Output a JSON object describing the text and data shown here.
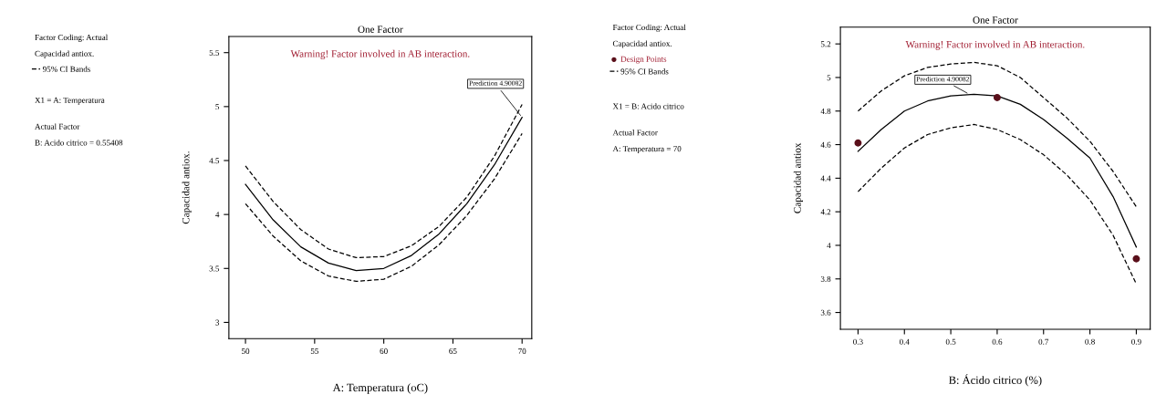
{
  "chart_data": [
    {
      "type": "line",
      "title": "One Factor",
      "subtitle": "Warning! Factor involved in AB interaction.",
      "xlabel": "A: Temperatura (oC)",
      "ylabel": "Capacidad antiox.",
      "x": [
        50,
        52,
        54,
        56,
        58,
        60,
        62,
        64,
        66,
        68,
        70
      ],
      "series": [
        {
          "color": "#000000",
          "line_style": "solid",
          "values": [
            4.28,
            3.95,
            3.7,
            3.55,
            3.48,
            3.5,
            3.62,
            3.82,
            4.1,
            4.46,
            4.9
          ]
        },
        {
          "name": "95% CI Bands",
          "color": "#000000",
          "line_style": "dashed",
          "values": [
            4.45,
            4.12,
            3.86,
            3.68,
            3.6,
            3.61,
            3.71,
            3.89,
            4.16,
            4.54,
            5.02
          ]
        },
        {
          "name": "95% CI Bands",
          "color": "#000000",
          "line_style": "dashed",
          "values": [
            4.1,
            3.8,
            3.57,
            3.43,
            3.38,
            3.4,
            3.52,
            3.72,
            3.99,
            4.33,
            4.75
          ]
        }
      ],
      "xlim": [
        48.8,
        70.7
      ],
      "xticks": [
        50,
        55,
        60,
        65,
        70
      ],
      "ylim": [
        2.85,
        5.65
      ],
      "yticks": [
        3,
        3.5,
        4,
        4.5,
        5,
        5.5
      ],
      "grid": false,
      "legend": "left",
      "marker": "none",
      "annotations": [
        "Factor Coding: Actual",
        "Capacidad antiox.",
        "X1 = A: Temperatura",
        "Actual Factor",
        "B: Acido citrico = 0.55408",
        {
          "text": "Prediction 4.90082",
          "x": 70,
          "y": 4.9
        }
      ]
    },
    {
      "type": "line",
      "title": "One Factor",
      "subtitle": "Warning! Factor involved in AB interaction.",
      "xlabel": "B: Ácido citrico (%)",
      "ylabel": "Capacidad antiox",
      "x": [
        0.3,
        0.35,
        0.4,
        0.45,
        0.5,
        0.55,
        0.6,
        0.65,
        0.7,
        0.75,
        0.8,
        0.85,
        0.9
      ],
      "series": [
        {
          "name": "Design Points",
          "type": "scatter",
          "marker": "circle",
          "color": "#5a0f1a",
          "x": [
            0.3,
            0.6,
            0.9
          ],
          "values": [
            4.61,
            4.88,
            3.92
          ]
        },
        {
          "color": "#000000",
          "line_style": "solid",
          "values": [
            4.56,
            4.69,
            4.8,
            4.86,
            4.89,
            4.9,
            4.89,
            4.84,
            4.75,
            4.64,
            4.52,
            4.29,
            3.99
          ]
        },
        {
          "name": "95% CI Bands",
          "color": "#000000",
          "line_style": "dashed",
          "values": [
            4.8,
            4.92,
            5.01,
            5.06,
            5.08,
            5.09,
            5.07,
            5.0,
            4.88,
            4.76,
            4.62,
            4.44,
            4.23
          ]
        },
        {
          "name": "95% CI Bands",
          "color": "#000000",
          "line_style": "dashed",
          "values": [
            4.32,
            4.46,
            4.58,
            4.66,
            4.7,
            4.72,
            4.69,
            4.63,
            4.54,
            4.42,
            4.27,
            4.06,
            3.77
          ]
        }
      ],
      "xlim": [
        0.262,
        0.93
      ],
      "xticks": [
        0.3,
        0.4,
        0.5,
        0.6,
        0.7,
        0.8,
        0.9
      ],
      "ylim": [
        3.5,
        5.3
      ],
      "yticks": [
        3.6,
        3.8,
        4,
        4.2,
        4.4,
        4.6,
        4.8,
        5,
        5.2
      ],
      "grid": false,
      "legend": "left",
      "marker": "none",
      "annotations": [
        "Factor Coding: Actual",
        "Capacidad antiox.",
        "X1 = B: Acido citrico",
        "Actual Factor",
        "A: Temperatura = 70",
        {
          "text": "Prediction 4.90082",
          "x": 0.54,
          "y": 4.9
        }
      ]
    }
  ]
}
